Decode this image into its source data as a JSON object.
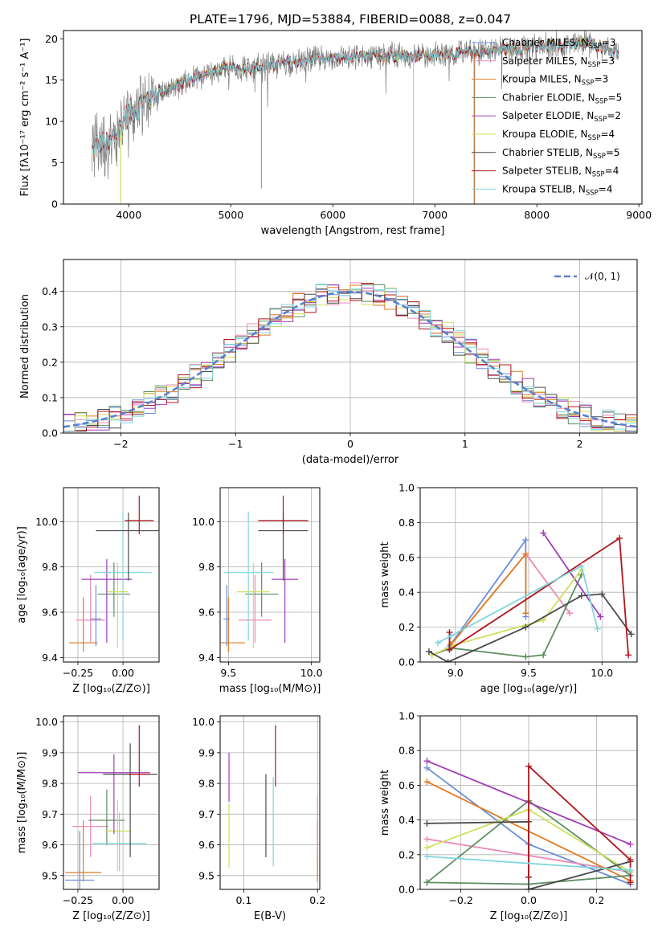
{
  "figure": {
    "title": "PLATE=1796, MJD=53884, FIBERID=0088, z=0.047"
  },
  "chart_data": [
    {
      "id": "spectrum",
      "type": "line",
      "xlabel": "wavelength [Angstrom, rest frame]",
      "ylabel": "Flux [fλ10⁻¹⁷ erg cm⁻² s⁻¹ A⁻¹]",
      "xlim": [
        3360,
        9030
      ],
      "ylim": [
        0,
        21
      ],
      "xticks": [
        4000,
        5000,
        6000,
        7000,
        8000,
        9000
      ],
      "yticks": [
        0,
        5,
        10,
        15,
        20
      ],
      "grid": false,
      "legend": "top-right",
      "data_range": [
        3640,
        8800
      ],
      "continuum": {
        "x": [
          3640,
          3700,
          3800,
          3900,
          4000,
          4100,
          4200,
          4300,
          4500,
          4700,
          5000,
          5300,
          5500,
          5800,
          6000,
          6500,
          7000,
          7500,
          8000,
          8500,
          8800
        ],
        "y": [
          6.5,
          7.5,
          7.0,
          9.0,
          11.0,
          12.0,
          13.0,
          13.5,
          14.5,
          15.5,
          16.5,
          16.5,
          17.0,
          17.5,
          17.5,
          18.0,
          18.0,
          18.5,
          19.0,
          19.5,
          18.5
        ]
      },
      "observed": {
        "color": "#7f7f7f",
        "noise": 1.6
      },
      "bad_pixels": [
        {
          "x": 3920,
          "y": 0.3
        },
        {
          "x": 5300,
          "y": 1.9
        },
        {
          "x": 6790,
          "y": 0.0
        },
        {
          "x": 7390,
          "y": 0.0
        }
      ],
      "series": [
        {
          "name": "Chabrier MILES, N",
          "sub": "SSP",
          "suffix": "=3",
          "color": "#6a8fd8"
        },
        {
          "name": "Salpeter MILES, N",
          "sub": "SSP",
          "suffix": "=3",
          "color": "#e98bb6"
        },
        {
          "name": "Kroupa MILES, N",
          "sub": "SSP",
          "suffix": "=3",
          "color": "#e07b22"
        },
        {
          "name": "Chabrier ELODIE, N",
          "sub": "SSP",
          "suffix": "=5",
          "color": "#5d8f62"
        },
        {
          "name": "Salpeter ELODIE, N",
          "sub": "SSP",
          "suffix": "=2",
          "color": "#a23bb8"
        },
        {
          "name": "Kroupa ELODIE, N",
          "sub": "SSP",
          "suffix": "=4",
          "color": "#cde05a"
        },
        {
          "name": "Chabrier STELIB, N",
          "sub": "SSP",
          "suffix": "=5",
          "color": "#4a4a4a"
        },
        {
          "name": "Salpeter STELIB, N",
          "sub": "SSP",
          "suffix": "=4",
          "color": "#b0161d"
        },
        {
          "name": "Kroupa STELIB, N",
          "sub": "SSP",
          "suffix": "=4",
          "color": "#7fd6de"
        }
      ]
    },
    {
      "id": "residuals",
      "type": "line",
      "xlabel": "(data-model)/error",
      "ylabel": "Normed distribution",
      "xlim": [
        -2.5,
        2.5
      ],
      "ylim": [
        0,
        0.49
      ],
      "xticks": [
        -2,
        -1,
        0,
        1,
        2
      ],
      "yticks": [
        0.0,
        0.1,
        0.2,
        0.3,
        0.4
      ],
      "grid": true,
      "legend": "top-right",
      "gaussian": {
        "name": "𝒩(0, 1)",
        "mean": 0,
        "sigma": 1,
        "color": "#5a82d0"
      },
      "bin_width": 0.1,
      "bin_start": -2.5
    },
    {
      "id": "age_vs_Z",
      "type": "scatter",
      "xlabel": "Z [log₁₀(Z/Z⊙)]",
      "ylabel": "age  [log₁₀(age/yr)]",
      "xlim": [
        -0.33,
        0.2
      ],
      "ylim": [
        9.38,
        10.15
      ],
      "xticks": [
        -0.25,
        0.0
      ],
      "yticks": [
        9.4,
        9.6,
        9.8,
        10.0
      ],
      "grid": true,
      "points": [
        {
          "x": -0.22,
          "y": 9.465,
          "xerr": 0.08,
          "yerr": [
            0.04,
            0.2
          ],
          "color": "#e07b22"
        },
        {
          "x": -0.18,
          "y": 9.565,
          "xerr": 0.08,
          "yerr": [
            0.1,
            0.2
          ],
          "color": "#e98bb6"
        },
        {
          "x": -0.15,
          "y": 9.57,
          "xerr": 0.03,
          "yerr": [
            0.12,
            0.15
          ],
          "color": "#6a8fd8"
        },
        {
          "x": -0.05,
          "y": 9.68,
          "xerr": 0.09,
          "yerr": [
            0.1,
            0.14
          ],
          "color": "#5d8f62"
        },
        {
          "x": -0.03,
          "y": 9.69,
          "xerr": 0.06,
          "yerr": [
            0.25,
            0.13
          ],
          "color": "#cde05a"
        },
        {
          "x": -0.09,
          "y": 9.745,
          "xerr": 0.14,
          "yerr": [
            0.28,
            0.09
          ],
          "color": "#a23bb8"
        },
        {
          "x": 0.0,
          "y": 9.775,
          "xerr": 0.16,
          "yerr": [
            0.3,
            0.27
          ],
          "color": "#7fd6de"
        },
        {
          "x": 0.03,
          "y": 9.96,
          "xerr": 0.18,
          "yerr": [
            0.22,
            0.08
          ],
          "color": "#4a4a4a"
        },
        {
          "x": 0.09,
          "y": 10.005,
          "xerr": 0.08,
          "yerr": [
            0.06,
            0.11
          ],
          "color": "#b0161d"
        }
      ]
    },
    {
      "id": "age_vs_mass",
      "type": "scatter",
      "xlabel": "mass [log₁₀(M/M⊙)]",
      "ylabel": "",
      "xlim": [
        9.45,
        10.05
      ],
      "ylim": [
        9.38,
        10.15
      ],
      "xticks": [
        9.5,
        10.0
      ],
      "yticks": [
        9.4,
        9.6,
        9.8,
        10.0
      ],
      "grid": true,
      "points": [
        {
          "x": 9.5,
          "y": 9.465,
          "xerr": 0.1,
          "yerr": [
            0.04,
            0.2
          ],
          "color": "#e07b22"
        },
        {
          "x": 9.66,
          "y": 9.565,
          "xerr": 0.1,
          "yerr": [
            0.1,
            0.2
          ],
          "color": "#e98bb6"
        },
        {
          "x": 9.49,
          "y": 9.57,
          "xerr": 0.02,
          "yerr": [
            0.12,
            0.15
          ],
          "color": "#6a8fd8"
        },
        {
          "x": 9.7,
          "y": 9.68,
          "xerr": 0.1,
          "yerr": [
            0.1,
            0.14
          ],
          "color": "#5d8f62"
        },
        {
          "x": 9.65,
          "y": 9.69,
          "xerr": 0.1,
          "yerr": [
            0.25,
            0.13
          ],
          "color": "#cde05a"
        },
        {
          "x": 9.84,
          "y": 9.745,
          "xerr": 0.08,
          "yerr": [
            0.28,
            0.09
          ],
          "color": "#a23bb8"
        },
        {
          "x": 9.62,
          "y": 9.775,
          "xerr": 0.15,
          "yerr": [
            0.3,
            0.27
          ],
          "color": "#7fd6de"
        },
        {
          "x": 9.83,
          "y": 9.96,
          "xerr": 0.15,
          "yerr": [
            0.22,
            0.08
          ],
          "color": "#4a4a4a"
        },
        {
          "x": 9.83,
          "y": 10.005,
          "xerr": 0.15,
          "yerr": [
            0.06,
            0.11
          ],
          "color": "#b0161d"
        }
      ]
    },
    {
      "id": "weight_vs_age",
      "type": "line",
      "xlabel": "age  [log₁₀(age/yr)]",
      "ylabel": "mass weight",
      "xlim": [
        8.76,
        10.24
      ],
      "ylim": [
        0,
        1.0
      ],
      "xticks": [
        9.0,
        9.5,
        10.0
      ],
      "yticks": [
        0.0,
        0.2,
        0.4,
        0.6,
        0.8,
        1.0
      ],
      "grid": true,
      "series": [
        {
          "color": "#6a8fd8",
          "x": [
            8.95,
            9.48,
            9.48
          ],
          "y": [
            0.08,
            0.7,
            0.26
          ]
        },
        {
          "color": "#e98bb6",
          "x": [
            8.97,
            9.48,
            9.78
          ],
          "y": [
            0.1,
            0.62,
            0.28
          ]
        },
        {
          "color": "#e07b22",
          "x": [
            8.97,
            9.48,
            9.48
          ],
          "y": [
            0.1,
            0.62,
            0.28
          ]
        },
        {
          "color": "#5d8f62",
          "x": [
            8.84,
            8.97,
            9.48,
            9.6,
            9.86
          ],
          "y": [
            0.04,
            0.08,
            0.03,
            0.04,
            0.5
          ]
        },
        {
          "color": "#a23bb8",
          "x": [
            9.6,
            9.99
          ],
          "y": [
            0.74,
            0.26
          ]
        },
        {
          "color": "#cde05a",
          "x": [
            8.84,
            9.0,
            9.6,
            9.86
          ],
          "y": [
            0.04,
            0.1,
            0.24,
            0.53
          ]
        },
        {
          "color": "#4a4a4a",
          "x": [
            8.82,
            8.95,
            9.48,
            9.86,
            10.0,
            10.2
          ],
          "y": [
            0.06,
            0.0,
            0.2,
            0.38,
            0.39,
            0.16
          ]
        },
        {
          "color": "#b0161d",
          "x": [
            8.96,
            8.96,
            10.12,
            10.18
          ],
          "y": [
            0.17,
            0.07,
            0.71,
            0.04
          ]
        },
        {
          "color": "#7fd6de",
          "x": [
            8.88,
            8.97,
            9.86,
            9.97
          ],
          "y": [
            0.11,
            0.15,
            0.55,
            0.19
          ]
        }
      ]
    },
    {
      "id": "mass_vs_Z",
      "type": "scatter",
      "xlabel": "Z [log₁₀(Z/Z⊙)]",
      "ylabel": "mass [log₁₀(M/M⊙)]",
      "xlim": [
        -0.33,
        0.2
      ],
      "ylim": [
        9.455,
        10.02
      ],
      "xticks": [
        -0.25,
        0.0
      ],
      "yticks": [
        9.5,
        9.6,
        9.7,
        9.8,
        9.9,
        10.0
      ],
      "grid": true,
      "points": [
        {
          "x": -0.22,
          "y": 9.51,
          "xerr": 0.1,
          "yerr": [
            0.03,
            0.17
          ],
          "color": "#e07b22"
        },
        {
          "x": -0.18,
          "y": 9.66,
          "xerr": 0.1,
          "yerr": [
            0.1,
            0.1
          ],
          "color": "#e98bb6"
        },
        {
          "x": -0.24,
          "y": 9.485,
          "xerr": 0.08,
          "yerr": [
            0.03,
            0.16
          ],
          "color": "#6a8fd8"
        },
        {
          "x": -0.09,
          "y": 9.68,
          "xerr": 0.1,
          "yerr": [
            0.08,
            0.1
          ],
          "color": "#5d8f62"
        },
        {
          "x": -0.03,
          "y": 9.645,
          "xerr": 0.07,
          "yerr": [
            0.13,
            0.1
          ],
          "color": "#cde05a"
        },
        {
          "x": -0.05,
          "y": 9.835,
          "xerr": 0.2,
          "yerr": [
            0.2,
            0.06
          ],
          "color": "#a23bb8"
        },
        {
          "x": -0.02,
          "y": 9.605,
          "xerr": 0.15,
          "yerr": [
            0.09,
            0.1
          ],
          "color": "#7fd6de"
        },
        {
          "x": 0.04,
          "y": 9.83,
          "xerr": 0.15,
          "yerr": [
            0.27,
            0.1
          ],
          "color": "#4a4a4a"
        },
        {
          "x": 0.09,
          "y": 9.83,
          "xerr": 0.06,
          "yerr": [
            0.04,
            0.16
          ],
          "color": "#b0161d"
        }
      ]
    },
    {
      "id": "mass_vs_ebv",
      "type": "scatter",
      "xlabel": "E(B-V)",
      "ylabel": "",
      "xlim": [
        0.068,
        0.203
      ],
      "ylim": [
        9.455,
        10.02
      ],
      "xticks": [
        0.1,
        0.2
      ],
      "yticks": [
        9.5,
        9.6,
        9.7,
        9.8,
        9.9,
        10.0
      ],
      "grid": true,
      "points": [
        {
          "x": 0.2,
          "y": 9.51,
          "xerr": 0,
          "yerr": [
            0.03,
            0.17
          ],
          "color": "#e07b22"
        },
        {
          "x": 0.2,
          "y": 9.66,
          "xerr": 0,
          "yerr": [
            0.1,
            0.1
          ],
          "color": "#e98bb6"
        },
        {
          "x": 0.08,
          "y": 9.665,
          "xerr": 0,
          "yerr": [
            0.14,
            0.07
          ],
          "color": "#cde05a"
        },
        {
          "x": 0.08,
          "y": 9.82,
          "xerr": 0,
          "yerr": [
            0.08,
            0.08
          ],
          "color": "#a23bb8"
        },
        {
          "x": 0.13,
          "y": 9.68,
          "xerr": 0,
          "yerr": [
            0.12,
            0.15
          ],
          "color": "#4a4a4a"
        },
        {
          "x": 0.14,
          "y": 9.67,
          "xerr": 0,
          "yerr": [
            0.14,
            0.15
          ],
          "color": "#7fd6de"
        },
        {
          "x": 0.143,
          "y": 9.89,
          "xerr": 0,
          "yerr": [
            0.1,
            0.1
          ],
          "color": "#b0161d"
        }
      ]
    },
    {
      "id": "weight_vs_Z",
      "type": "line",
      "xlabel": "Z [log₁₀(Z/Z⊙)]",
      "ylabel": "mass weight",
      "xlim": [
        -0.32,
        0.32
      ],
      "ylim": [
        0,
        1.0
      ],
      "xticks": [
        -0.2,
        0.0,
        0.2
      ],
      "yticks": [
        0.0,
        0.2,
        0.4,
        0.6,
        0.8,
        1.0
      ],
      "grid": true,
      "series": [
        {
          "color": "#6a8fd8",
          "x": [
            -0.3,
            0.0,
            0.3
          ],
          "y": [
            0.7,
            0.26,
            0.03
          ]
        },
        {
          "color": "#e98bb6",
          "x": [
            -0.3,
            0.3
          ],
          "y": [
            0.29,
            0.1
          ]
        },
        {
          "color": "#e07b22",
          "x": [
            -0.3,
            0.3
          ],
          "y": [
            0.62,
            0.05
          ]
        },
        {
          "color": "#5d8f62",
          "x": [
            -0.3,
            0.0,
            0.3,
            0.0,
            -0.3
          ],
          "y": [
            0.04,
            0.51,
            0.08,
            0.03,
            0.04
          ]
        },
        {
          "color": "#a23bb8",
          "x": [
            -0.3,
            0.3
          ],
          "y": [
            0.74,
            0.26
          ]
        },
        {
          "color": "#cde05a",
          "x": [
            -0.3,
            0.0,
            0.3
          ],
          "y": [
            0.24,
            0.46,
            0.1
          ]
        },
        {
          "color": "#4a4a4a",
          "x": [
            -0.3,
            0.0,
            0.0,
            0.3
          ],
          "y": [
            0.38,
            0.39,
            0.0,
            0.16
          ]
        },
        {
          "color": "#b0161d",
          "x": [
            0.0,
            0.0,
            0.3,
            0.3
          ],
          "y": [
            0.07,
            0.71,
            0.17,
            0.04
          ]
        },
        {
          "color": "#7fd6de",
          "x": [
            -0.3,
            0.3
          ],
          "y": [
            0.19,
            0.11
          ]
        }
      ]
    }
  ]
}
